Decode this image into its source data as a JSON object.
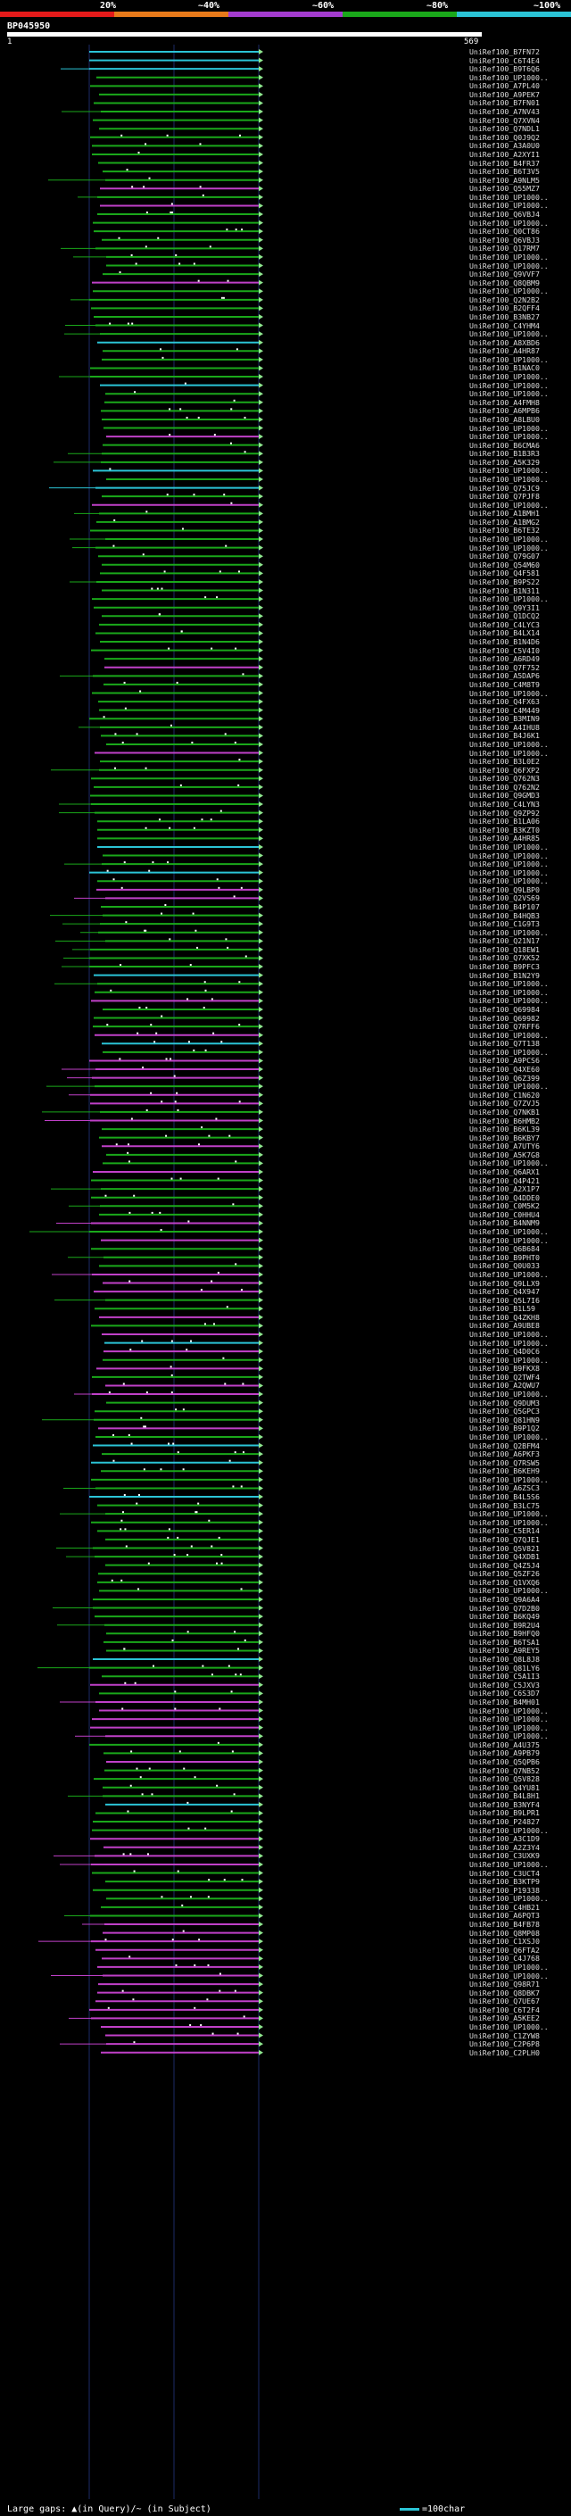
{
  "legend": {
    "marks": [
      {
        "label": "20%",
        "color": "#e51a1a"
      },
      {
        "label": "~40%",
        "color": "#e87a1a"
      },
      {
        "label": "~60%",
        "color": "#a43ccf"
      },
      {
        "label": "~80%",
        "color": "#1aa81a"
      },
      {
        "label": "~100%",
        "color": "#2bc4d6"
      }
    ]
  },
  "query": {
    "id": "BP045950",
    "start": "1",
    "end": "569"
  },
  "footer": {
    "large_gaps": "Large gaps: ▲(in Query)/~ (in Subject)",
    "scale": "=100char"
  },
  "colors": {
    "cyan": "#2bc4d6",
    "green": "#1aa81a",
    "purple": "#c040c8",
    "arrow": "#8fe88f"
  },
  "hits": [
    {
      "id": "UniRef100_B7FN72",
      "c": "cyan"
    },
    {
      "id": "UniRef100_C6T4E4",
      "c": "cyan"
    },
    {
      "id": "UniRef100_B9T6Q6",
      "c": "cyan"
    },
    {
      "id": "UniRef100_UP1000..",
      "c": "green"
    },
    {
      "id": "UniRef100_A7PL40",
      "c": "green"
    },
    {
      "id": "UniRef100_A9PEK7",
      "c": "green"
    },
    {
      "id": "UniRef100_B7FN01",
      "c": "green"
    },
    {
      "id": "UniRef100_A7NV43",
      "c": "green"
    },
    {
      "id": "UniRef100_Q7XVN4",
      "c": "green"
    },
    {
      "id": "UniRef100_Q7NDL1",
      "c": "green"
    },
    {
      "id": "UniRef100_Q0J9Q2",
      "c": "green"
    },
    {
      "id": "UniRef100_A3A0U0",
      "c": "green"
    },
    {
      "id": "UniRef100_A2XYI1",
      "c": "green"
    },
    {
      "id": "UniRef100_B4FR37",
      "c": "green"
    },
    {
      "id": "UniRef100_B6T3V5",
      "c": "green"
    },
    {
      "id": "UniRef100_A9NLM5",
      "c": "green"
    },
    {
      "id": "UniRef100_Q55MZ7",
      "c": "purple"
    },
    {
      "id": "UniRef100_UP1000..",
      "c": "green"
    },
    {
      "id": "UniRef100_UP1000..",
      "c": "purple"
    },
    {
      "id": "UniRef100_Q6VBJ4",
      "c": "green"
    },
    {
      "id": "UniRef100_UP1000..",
      "c": "green"
    },
    {
      "id": "UniRef100_Q0CT86",
      "c": "green"
    },
    {
      "id": "UniRef100_Q6VBJ3",
      "c": "green"
    },
    {
      "id": "UniRef100_Q17RM7",
      "c": "green"
    },
    {
      "id": "UniRef100_UP1000..",
      "c": "green"
    },
    {
      "id": "UniRef100_UP1000..",
      "c": "green"
    },
    {
      "id": "UniRef100_Q9VVF7",
      "c": "green"
    },
    {
      "id": "UniRef100_Q8QBM9",
      "c": "purple"
    },
    {
      "id": "UniRef100_UP1000..",
      "c": "green"
    },
    {
      "id": "UniRef100_Q2N2B2",
      "c": "green"
    },
    {
      "id": "UniRef100_B2QFF4",
      "c": "green"
    },
    {
      "id": "UniRef100_B3NB27",
      "c": "green"
    },
    {
      "id": "UniRef100_C4YHM4",
      "c": "green"
    },
    {
      "id": "UniRef100_UP1000..",
      "c": "green"
    },
    {
      "id": "UniRef100_A8XBD6",
      "c": "cyan"
    },
    {
      "id": "UniRef100_A4HR87",
      "c": "green"
    },
    {
      "id": "UniRef100_UP1000..",
      "c": "green"
    },
    {
      "id": "UniRef100_B1NAC0",
      "c": "green"
    },
    {
      "id": "UniRef100_UP1000..",
      "c": "green"
    },
    {
      "id": "UniRef100_UP1000..",
      "c": "cyan"
    },
    {
      "id": "UniRef100_UP1000..",
      "c": "green"
    },
    {
      "id": "UniRef100_A4FMH8",
      "c": "green"
    },
    {
      "id": "UniRef100_A6MPB6",
      "c": "green"
    },
    {
      "id": "UniRef100_A8LBU0",
      "c": "green"
    },
    {
      "id": "UniRef100_UP1000..",
      "c": "green"
    },
    {
      "id": "UniRef100_UP1000..",
      "c": "purple"
    },
    {
      "id": "UniRef100_B6CMA6",
      "c": "green"
    },
    {
      "id": "UniRef100_B1B3R3",
      "c": "green"
    },
    {
      "id": "UniRef100_A5K329",
      "c": "green"
    },
    {
      "id": "UniRef100_UP1000..",
      "c": "cyan"
    },
    {
      "id": "UniRef100_UP1000..",
      "c": "green"
    },
    {
      "id": "UniRef100_Q75JC9",
      "c": "cyan"
    },
    {
      "id": "UniRef100_Q7PJF8",
      "c": "green"
    },
    {
      "id": "UniRef100_UP1000..",
      "c": "purple"
    },
    {
      "id": "UniRef100_A1BMH1",
      "c": "green"
    },
    {
      "id": "UniRef100_A1BMG2",
      "c": "green"
    },
    {
      "id": "UniRef100_B6TE32",
      "c": "green"
    },
    {
      "id": "UniRef100_UP1000..",
      "c": "green"
    },
    {
      "id": "UniRef100_UP1000..",
      "c": "green"
    },
    {
      "id": "UniRef100_Q79G07",
      "c": "green"
    },
    {
      "id": "UniRef100_Q54M60",
      "c": "green"
    },
    {
      "id": "UniRef100_Q4F581",
      "c": "green"
    },
    {
      "id": "UniRef100_B9PS22",
      "c": "green"
    },
    {
      "id": "UniRef100_B1N311",
      "c": "green"
    },
    {
      "id": "UniRef100_UP1000..",
      "c": "green"
    },
    {
      "id": "UniRef100_Q9Y3I1",
      "c": "green"
    },
    {
      "id": "UniRef100_Q1DCQ2",
      "c": "green"
    },
    {
      "id": "UniRef100_C4LYC3",
      "c": "green"
    },
    {
      "id": "UniRef100_B4LX14",
      "c": "green"
    },
    {
      "id": "UniRef100_B1N4D6",
      "c": "green"
    },
    {
      "id": "UniRef100_C5V4I0",
      "c": "green"
    },
    {
      "id": "UniRef100_A6RD49",
      "c": "green"
    },
    {
      "id": "UniRef100_Q7F752",
      "c": "purple"
    },
    {
      "id": "UniRef100_A5DAP6",
      "c": "green"
    },
    {
      "id": "UniRef100_C4M8T9",
      "c": "green"
    },
    {
      "id": "UniRef100_UP1000..",
      "c": "green"
    },
    {
      "id": "UniRef100_Q4FX63",
      "c": "green"
    },
    {
      "id": "UniRef100_C4M449",
      "c": "green"
    },
    {
      "id": "UniRef100_B3MIN9",
      "c": "green"
    },
    {
      "id": "UniRef100_A4IHU8",
      "c": "green"
    },
    {
      "id": "UniRef100_B4J6K1",
      "c": "green"
    },
    {
      "id": "UniRef100_UP1000..",
      "c": "green"
    },
    {
      "id": "UniRef100_UP1000..",
      "c": "purple"
    },
    {
      "id": "UniRef100_B3L0E2",
      "c": "green"
    },
    {
      "id": "UniRef100_Q6FXP2",
      "c": "green"
    },
    {
      "id": "UniRef100_Q762N3",
      "c": "green"
    },
    {
      "id": "UniRef100_Q762N2",
      "c": "green"
    },
    {
      "id": "UniRef100_Q9GMD3",
      "c": "green"
    },
    {
      "id": "UniRef100_C4LYN3",
      "c": "green"
    },
    {
      "id": "UniRef100_Q9ZP92",
      "c": "green"
    },
    {
      "id": "UniRef100_B1LA06",
      "c": "green"
    },
    {
      "id": "UniRef100_B3KZT0",
      "c": "green"
    },
    {
      "id": "UniRef100_A4HR85",
      "c": "green"
    },
    {
      "id": "UniRef100_UP1000..",
      "c": "cyan"
    },
    {
      "id": "UniRef100_UP1000..",
      "c": "green"
    },
    {
      "id": "UniRef100_UP1000..",
      "c": "green"
    },
    {
      "id": "UniRef100_UP1000..",
      "c": "cyan"
    },
    {
      "id": "UniRef100_UP1000..",
      "c": "green"
    },
    {
      "id": "UniRef100_Q9LBP0",
      "c": "purple"
    },
    {
      "id": "UniRef100_Q2VS69",
      "c": "purple"
    },
    {
      "id": "UniRef100_B4P107",
      "c": "green"
    },
    {
      "id": "UniRef100_B4HQB3",
      "c": "green"
    },
    {
      "id": "UniRef100_C1G9T3",
      "c": "green"
    },
    {
      "id": "UniRef100_UP1000..",
      "c": "green"
    },
    {
      "id": "UniRef100_Q21N17",
      "c": "green"
    },
    {
      "id": "UniRef100_Q18EW1",
      "c": "green"
    },
    {
      "id": "UniRef100_Q7XK52",
      "c": "green"
    },
    {
      "id": "UniRef100_B9PFC3",
      "c": "green"
    },
    {
      "id": "UniRef100_B1N2Y9",
      "c": "cyan"
    },
    {
      "id": "UniRef100_UP1000..",
      "c": "green"
    },
    {
      "id": "UniRef100_UP1000..",
      "c": "green"
    },
    {
      "id": "UniRef100_UP1000..",
      "c": "purple"
    },
    {
      "id": "UniRef100_Q69984",
      "c": "green"
    },
    {
      "id": "UniRef100_Q69982",
      "c": "green"
    },
    {
      "id": "UniRef100_Q7RFF6",
      "c": "green"
    },
    {
      "id": "UniRef100_UP1000..",
      "c": "purple"
    },
    {
      "id": "UniRef100_Q7T138",
      "c": "cyan"
    },
    {
      "id": "UniRef100_UP1000..",
      "c": "green"
    },
    {
      "id": "UniRef100_A9PCS6",
      "c": "purple"
    },
    {
      "id": "UniRef100_Q4XE60",
      "c": "purple"
    },
    {
      "id": "UniRef100_Q6Z399",
      "c": "purple"
    },
    {
      "id": "UniRef100_UP1000..",
      "c": "green"
    },
    {
      "id": "UniRef100_C1N620",
      "c": "purple"
    },
    {
      "id": "UniRef100_Q7ZVJ5",
      "c": "purple"
    },
    {
      "id": "UniRef100_Q7NKB1",
      "c": "green"
    },
    {
      "id": "UniRef100_B6HMB2",
      "c": "purple"
    },
    {
      "id": "UniRef100_B6KL39",
      "c": "green"
    },
    {
      "id": "UniRef100_B6KBY7",
      "c": "green"
    },
    {
      "id": "UniRef100_A7UTY6",
      "c": "purple"
    },
    {
      "id": "UniRef100_A5K7G8",
      "c": "green"
    },
    {
      "id": "UniRef100_UP1000..",
      "c": "green"
    },
    {
      "id": "UniRef100_Q6ARX1",
      "c": "purple"
    },
    {
      "id": "UniRef100_Q4P421",
      "c": "green"
    },
    {
      "id": "UniRef100_A2X1P7",
      "c": "green"
    },
    {
      "id": "UniRef100_Q4DDE0",
      "c": "green"
    },
    {
      "id": "UniRef100_C0M5K2",
      "c": "green"
    },
    {
      "id": "UniRef100_C0HHU4",
      "c": "green"
    },
    {
      "id": "UniRef100_B4NNM9",
      "c": "purple"
    },
    {
      "id": "UniRef100_UP1000..",
      "c": "green"
    },
    {
      "id": "UniRef100_UP1000..",
      "c": "purple"
    },
    {
      "id": "UniRef100_Q6B684",
      "c": "green"
    },
    {
      "id": "UniRef100_B9PHT0",
      "c": "green"
    },
    {
      "id": "UniRef100_Q0U033",
      "c": "green"
    },
    {
      "id": "UniRef100_UP1000..",
      "c": "purple"
    },
    {
      "id": "UniRef100_Q9LLX9",
      "c": "purple"
    },
    {
      "id": "UniRef100_Q4X947",
      "c": "purple"
    },
    {
      "id": "UniRef100_Q5L7I6",
      "c": "green"
    },
    {
      "id": "UniRef100_B1L59",
      "c": "green"
    },
    {
      "id": "UniRef100_Q4ZKH8",
      "c": "purple"
    },
    {
      "id": "UniRef100_A9UBE8",
      "c": "green"
    },
    {
      "id": "UniRef100_UP1000..",
      "c": "purple"
    },
    {
      "id": "UniRef100_UP1000..",
      "c": "cyan"
    },
    {
      "id": "UniRef100_Q4D0C6",
      "c": "purple"
    },
    {
      "id": "UniRef100_UP1000..",
      "c": "green"
    },
    {
      "id": "UniRef100_B9FKX8",
      "c": "purple"
    },
    {
      "id": "UniRef100_Q2TWF4",
      "c": "green"
    },
    {
      "id": "UniRef100_A2QWU7",
      "c": "purple"
    },
    {
      "id": "UniRef100_UP1000..",
      "c": "purple"
    },
    {
      "id": "UniRef100_Q9DUM3",
      "c": "green"
    },
    {
      "id": "UniRef100_Q5GPC3",
      "c": "green"
    },
    {
      "id": "UniRef100_Q81HN9",
      "c": "green"
    },
    {
      "id": "UniRef100_B9P1Q2",
      "c": "purple"
    },
    {
      "id": "UniRef100_UP1000..",
      "c": "green"
    },
    {
      "id": "UniRef100_Q2BFM4",
      "c": "cyan"
    },
    {
      "id": "UniRef100_A6PKF3",
      "c": "green"
    },
    {
      "id": "UniRef100_Q7RSW5",
      "c": "cyan"
    },
    {
      "id": "UniRef100_B6KEH9",
      "c": "green"
    },
    {
      "id": "UniRef100_UP1000..",
      "c": "green"
    },
    {
      "id": "UniRef100_A6ZSC3",
      "c": "green"
    },
    {
      "id": "UniRef100_B4L5S6",
      "c": "cyan"
    },
    {
      "id": "UniRef100_B3LC75",
      "c": "green"
    },
    {
      "id": "UniRef100_UP1000..",
      "c": "green"
    },
    {
      "id": "UniRef100_UP1000..",
      "c": "green"
    },
    {
      "id": "UniRef100_C5ER14",
      "c": "green"
    },
    {
      "id": "UniRef100_Q7QJE1",
      "c": "green"
    },
    {
      "id": "UniRef100_Q5V821",
      "c": "green"
    },
    {
      "id": "UniRef100_Q4XDB1",
      "c": "green"
    },
    {
      "id": "UniRef100_Q4Z5J4",
      "c": "green"
    },
    {
      "id": "UniRef100_Q5ZF26",
      "c": "green"
    },
    {
      "id": "UniRef100_Q1VXQ6",
      "c": "green"
    },
    {
      "id": "UniRef100_UP1000..",
      "c": "green"
    },
    {
      "id": "UniRef100_Q9A6A4",
      "c": "green"
    },
    {
      "id": "UniRef100_Q7D2B0",
      "c": "green"
    },
    {
      "id": "UniRef100_B6KQ49",
      "c": "green"
    },
    {
      "id": "UniRef100_B9R2U4",
      "c": "green"
    },
    {
      "id": "UniRef100_B9HFQ0",
      "c": "green"
    },
    {
      "id": "UniRef100_B6TSA1",
      "c": "green"
    },
    {
      "id": "UniRef100_A9REY5",
      "c": "green"
    },
    {
      "id": "UniRef100_Q8L8J8",
      "c": "cyan"
    },
    {
      "id": "UniRef100_Q81LY6",
      "c": "green"
    },
    {
      "id": "UniRef100_C5A1I3",
      "c": "green"
    },
    {
      "id": "UniRef100_C5JXV3",
      "c": "purple"
    },
    {
      "id": "UniRef100_C6S3D7",
      "c": "green"
    },
    {
      "id": "UniRef100_B4MH01",
      "c": "purple"
    },
    {
      "id": "UniRef100_UP1000..",
      "c": "purple"
    },
    {
      "id": "UniRef100_UP1000..",
      "c": "purple"
    },
    {
      "id": "UniRef100_UP1000..",
      "c": "purple"
    },
    {
      "id": "UniRef100_UP1000..",
      "c": "purple"
    },
    {
      "id": "UniRef100_A4U375",
      "c": "green"
    },
    {
      "id": "UniRef100_A9PB79",
      "c": "green"
    },
    {
      "id": "UniRef100_Q5QPB6",
      "c": "purple"
    },
    {
      "id": "UniRef100_Q7NB52",
      "c": "green"
    },
    {
      "id": "UniRef100_Q5V828",
      "c": "green"
    },
    {
      "id": "UniRef100_Q4YU81",
      "c": "green"
    },
    {
      "id": "UniRef100_B4L8H1",
      "c": "green"
    },
    {
      "id": "UniRef100_B3NYF4",
      "c": "cyan"
    },
    {
      "id": "UniRef100_B9LPR1",
      "c": "green"
    },
    {
      "id": "UniRef100_P24827",
      "c": "green"
    },
    {
      "id": "UniRef100_UP1000..",
      "c": "green"
    },
    {
      "id": "UniRef100_A3C1D9",
      "c": "purple"
    },
    {
      "id": "UniRef100_A2Z3Y4",
      "c": "purple"
    },
    {
      "id": "UniRef100_C3UXK9",
      "c": "purple"
    },
    {
      "id": "UniRef100_UP1000..",
      "c": "purple"
    },
    {
      "id": "UniRef100_C3UCT4",
      "c": "green"
    },
    {
      "id": "UniRef100_B3KTP9",
      "c": "green"
    },
    {
      "id": "UniRef100_P19338",
      "c": "green"
    },
    {
      "id": "UniRef100_UP1000..",
      "c": "green"
    },
    {
      "id": "UniRef100_C4HB21",
      "c": "green"
    },
    {
      "id": "UniRef100_A6PQT3",
      "c": "green"
    },
    {
      "id": "UniRef100_B4FB78",
      "c": "purple"
    },
    {
      "id": "UniRef100_Q8MP08",
      "c": "purple"
    },
    {
      "id": "UniRef100_C1XSJ0",
      "c": "purple"
    },
    {
      "id": "UniRef100_Q6FTA2",
      "c": "purple"
    },
    {
      "id": "UniRef100_C4J768",
      "c": "purple"
    },
    {
      "id": "UniRef100_UP1000..",
      "c": "purple"
    },
    {
      "id": "UniRef100_UP1000..",
      "c": "purple"
    },
    {
      "id": "UniRef100_Q98R71",
      "c": "purple"
    },
    {
      "id": "UniRef100_Q8DBK7",
      "c": "purple"
    },
    {
      "id": "UniRef100_Q7UE67",
      "c": "purple"
    },
    {
      "id": "UniRef100_C6T2F4",
      "c": "purple"
    },
    {
      "id": "UniRef100_A5KEE2",
      "c": "purple"
    },
    {
      "id": "UniRef100_UP1000..",
      "c": "purple"
    },
    {
      "id": "UniRef100_C1ZYW8",
      "c": "purple"
    },
    {
      "id": "UniRef100_C2P6P8",
      "c": "purple"
    },
    {
      "id": "UniRef100_C2PLH0",
      "c": "purple"
    }
  ]
}
